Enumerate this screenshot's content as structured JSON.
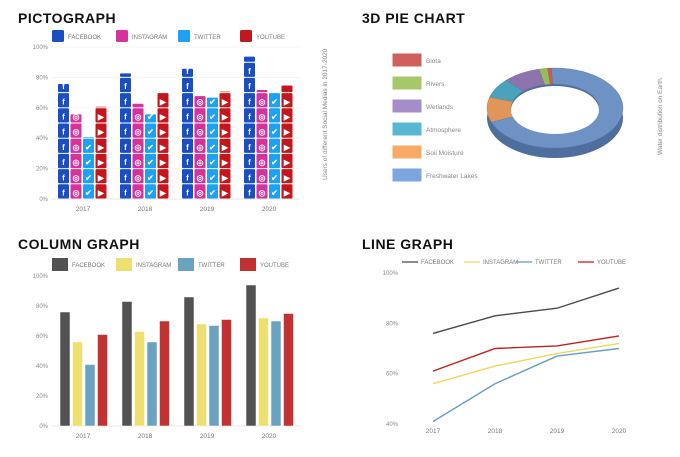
{
  "pictograph": {
    "title": "PICTOGRAPH",
    "side_label": "Users of different Social Medias in 2017-2020"
  },
  "pie": {
    "title": "3D PIE CHART",
    "side_label": "Water distribution on Earth"
  },
  "column": {
    "title": "COLUMN GRAPH"
  },
  "line": {
    "title": "LINE GRAPH"
  },
  "chart_data": [
    {
      "type": "bar",
      "variant": "pictograph",
      "categories": [
        "2017",
        "2018",
        "2019",
        "2020"
      ],
      "series": [
        {
          "name": "FACEBOOK",
          "values": [
            76,
            83,
            86,
            94
          ],
          "color": "#1a4fc4",
          "icon": "facebook-icon"
        },
        {
          "name": "INSTAGRAM",
          "values": [
            56,
            63,
            68,
            72
          ],
          "color": "#d6329a",
          "icon": "instagram-icon"
        },
        {
          "name": "TWITTER",
          "values": [
            41,
            56,
            67,
            70
          ],
          "color": "#1da1f2",
          "icon": "twitter-icon"
        },
        {
          "name": "YOUTUBE",
          "values": [
            61,
            70,
            71,
            75
          ],
          "color": "#c4161c",
          "icon": "youtube-icon"
        }
      ],
      "yticks": [
        "0%",
        "20%",
        "40%",
        "60%",
        "80%",
        "100%"
      ],
      "ylim": [
        0,
        100
      ],
      "grid": true,
      "legend": "top"
    },
    {
      "type": "pie",
      "variant": "3d-donut",
      "labels": [
        "Biota",
        "Rivers",
        "Wetlands",
        "Atmosphere",
        "Soil Moisture",
        "Freshwater Lakes"
      ],
      "values": [
        1,
        2,
        9,
        8,
        10,
        70
      ],
      "colors": [
        "#d0605e",
        "#a6c86a",
        "#a68cc8",
        "#58b8d4",
        "#f8aa66",
        "#7ea6de"
      ],
      "legend": "left"
    },
    {
      "type": "bar",
      "categories": [
        "2017",
        "2018",
        "2019",
        "2020"
      ],
      "series": [
        {
          "name": "FACEBOOK",
          "values": [
            76,
            83,
            86,
            94
          ],
          "color": "#525252"
        },
        {
          "name": "INSTAGRAM",
          "values": [
            56,
            63,
            68,
            72
          ],
          "color": "#ede070"
        },
        {
          "name": "TWITTER",
          "values": [
            41,
            56,
            67,
            70
          ],
          "color": "#6aa3c2"
        },
        {
          "name": "YOUTUBE",
          "values": [
            61,
            70,
            71,
            75
          ],
          "color": "#c33232"
        }
      ],
      "yticks": [
        "0%",
        "20%",
        "40%",
        "60%",
        "80%",
        "100%"
      ],
      "ylim": [
        0,
        100
      ],
      "legend": "top"
    },
    {
      "type": "line",
      "categories": [
        "2017",
        "2018",
        "2019",
        "2020"
      ],
      "series": [
        {
          "name": "FACEBOOK",
          "values": [
            76,
            83,
            86,
            94
          ],
          "color": "#4a4a4a"
        },
        {
          "name": "INSTAGRAM",
          "values": [
            56,
            63,
            68,
            72
          ],
          "color": "#eed860"
        },
        {
          "name": "TWITTER",
          "values": [
            41,
            56,
            67,
            70
          ],
          "color": "#6a9ec4"
        },
        {
          "name": "YOUTUBE",
          "values": [
            61,
            70,
            71,
            75
          ],
          "color": "#c42020"
        }
      ],
      "yticks": [
        "40%",
        "60%",
        "80%",
        "100%"
      ],
      "ylim": [
        40,
        100
      ],
      "legend": "top"
    }
  ]
}
